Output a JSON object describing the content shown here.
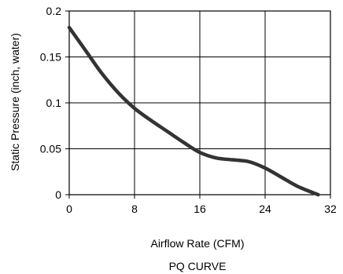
{
  "chart_data": {
    "type": "line",
    "title": "PQ CURVE",
    "xlabel": "Airflow Rate (CFM)",
    "ylabel": "Static Pressure (inch, water)",
    "xlim": [
      0,
      32
    ],
    "ylim": [
      0,
      0.2
    ],
    "x_ticks": [
      0,
      8,
      16,
      24,
      32
    ],
    "y_ticks": [
      0,
      0.05,
      0.1,
      0.15,
      0.2
    ],
    "x_tick_labels": [
      "0",
      "8",
      "16",
      "24",
      "32"
    ],
    "y_tick_labels": [
      "0",
      "0.05",
      "0.1",
      "0.15",
      "0.2"
    ],
    "grid": true,
    "legend": "none",
    "line_color": "#333333",
    "series": [
      {
        "x": [
          0,
          2,
          4,
          6,
          8,
          10,
          12,
          14,
          16,
          18,
          20,
          22,
          24,
          26,
          28,
          30.5
        ],
        "y": [
          0.182,
          0.157,
          0.132,
          0.111,
          0.094,
          0.081,
          0.069,
          0.057,
          0.046,
          0.04,
          0.038,
          0.036,
          0.029,
          0.019,
          0.009,
          0.0
        ]
      }
    ]
  }
}
